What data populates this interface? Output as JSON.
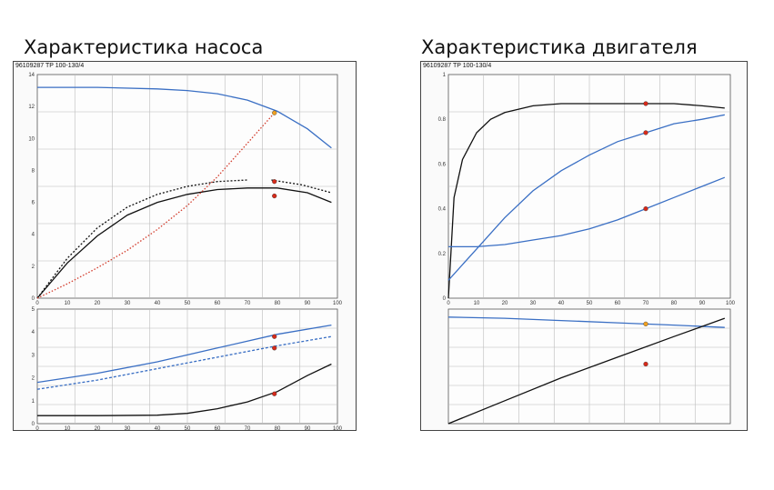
{
  "headings": {
    "pump": "Характеристика насоса",
    "motor": "Характеристика двигателя"
  },
  "panels": {
    "pump_id": "96109287 TP 100-130/4",
    "motor_id": "96109287 TP 100-130/4"
  },
  "colors": {
    "black_curve": "#111111",
    "blue_curve": "#3a6fc4",
    "red_curve": "#d23a2a",
    "marker_red": "#d62a1a",
    "marker_orange": "#f0a020",
    "grid": "#bbbbbb"
  },
  "chart_data": [
    {
      "type": "line",
      "ylim": [
        0,
        14
      ],
      "xlim": [
        0,
        100
      ],
      "x_ticks": [
        "0",
        "10",
        "20",
        "30",
        "40",
        "50",
        "60",
        "70",
        "80",
        "90",
        "100"
      ],
      "y_ticks": [
        "0",
        "2",
        "4",
        "6",
        "8",
        "10",
        "12",
        "14"
      ],
      "series": [
        {
          "style": "solid-blue",
          "x": [
            0,
            20,
            40,
            50,
            60,
            70,
            80,
            90,
            98
          ],
          "y": [
            13.2,
            13.2,
            13.1,
            13.0,
            12.8,
            12.4,
            11.7,
            10.6,
            9.4
          ]
        },
        {
          "style": "solid-black",
          "x": [
            0,
            10,
            20,
            30,
            40,
            50,
            60,
            70,
            80,
            90,
            98
          ],
          "y": [
            0,
            2.2,
            3.9,
            5.2,
            6.0,
            6.5,
            6.8,
            6.9,
            6.9,
            6.6,
            6.0
          ]
        },
        {
          "style": "dashed-black",
          "x": [
            0,
            10,
            20,
            30,
            40,
            50,
            60,
            70
          ],
          "y": [
            0,
            2.5,
            4.4,
            5.7,
            6.5,
            7.0,
            7.3,
            7.4
          ]
        },
        {
          "style": "dashed-red",
          "x": [
            0,
            10,
            20,
            30,
            40,
            50,
            60,
            70,
            79
          ],
          "y": [
            0,
            0.9,
            1.9,
            3.0,
            4.3,
            5.8,
            7.6,
            9.7,
            11.6
          ]
        },
        {
          "style": "dashed-black",
          "x": [
            78,
            88,
            98
          ],
          "y": [
            7.4,
            7.1,
            6.6
          ]
        }
      ],
      "markers": [
        {
          "x": 79,
          "y": 11.6,
          "color": "orange"
        },
        {
          "x": 79,
          "y": 7.3,
          "color": "red"
        },
        {
          "x": 79,
          "y": 6.4,
          "color": "red"
        }
      ]
    },
    {
      "type": "line",
      "ylim": [
        0,
        5
      ],
      "xlim": [
        0,
        100
      ],
      "x_ticks": [
        "0",
        "10",
        "20",
        "30",
        "40",
        "50",
        "60",
        "70",
        "80",
        "90",
        "100"
      ],
      "y_ticks": [
        "0",
        "1",
        "2",
        "3",
        "4",
        "5"
      ],
      "series": [
        {
          "style": "solid-blue",
          "x": [
            0,
            20,
            40,
            60,
            80,
            98
          ],
          "y": [
            1.8,
            2.2,
            2.7,
            3.3,
            3.9,
            4.3
          ]
        },
        {
          "style": "dashed-blue",
          "x": [
            0,
            20,
            40,
            60,
            80,
            98
          ],
          "y": [
            1.5,
            1.9,
            2.4,
            2.9,
            3.4,
            3.8
          ]
        },
        {
          "style": "solid-black",
          "x": [
            0,
            20,
            40,
            50,
            60,
            70,
            80,
            90,
            98
          ],
          "y": [
            0.35,
            0.35,
            0.37,
            0.45,
            0.65,
            0.95,
            1.4,
            2.1,
            2.6
          ]
        }
      ],
      "markers": [
        {
          "x": 79,
          "y": 3.8,
          "color": "red"
        },
        {
          "x": 79,
          "y": 3.3,
          "color": "red"
        },
        {
          "x": 79,
          "y": 1.3,
          "color": "red"
        }
      ]
    },
    {
      "type": "line",
      "ylim": [
        0,
        1
      ],
      "xlim": [
        0,
        100
      ],
      "x_ticks": [
        "0",
        "10",
        "20",
        "30",
        "40",
        "50",
        "60",
        "70",
        "80",
        "90",
        "100"
      ],
      "y_ticks": [
        "0",
        "0.2",
        "0.4",
        "0.6",
        "0.8",
        "1"
      ],
      "series": [
        {
          "style": "solid-black",
          "x": [
            0,
            2,
            5,
            10,
            15,
            20,
            30,
            40,
            50,
            60,
            70,
            80,
            90,
            98
          ],
          "y": [
            0,
            0.45,
            0.62,
            0.74,
            0.8,
            0.83,
            0.86,
            0.87,
            0.87,
            0.87,
            0.87,
            0.87,
            0.86,
            0.85
          ]
        },
        {
          "style": "solid-blue",
          "x": [
            0,
            10,
            20,
            30,
            40,
            50,
            60,
            70,
            80,
            90,
            98
          ],
          "y": [
            0.08,
            0.22,
            0.36,
            0.48,
            0.57,
            0.64,
            0.7,
            0.74,
            0.78,
            0.8,
            0.82
          ]
        },
        {
          "style": "solid-blue",
          "x": [
            0,
            10,
            20,
            30,
            40,
            50,
            60,
            70,
            80,
            90,
            98
          ],
          "y": [
            0.23,
            0.23,
            0.24,
            0.26,
            0.28,
            0.31,
            0.35,
            0.4,
            0.45,
            0.5,
            0.54
          ]
        }
      ],
      "markers": [
        {
          "x": 70,
          "y": 0.87,
          "color": "red"
        },
        {
          "x": 70,
          "y": 0.74,
          "color": "red"
        },
        {
          "x": 70,
          "y": 0.4,
          "color": "red"
        }
      ]
    },
    {
      "type": "line",
      "ylim": [
        0,
        1
      ],
      "xlim": [
        0,
        100
      ],
      "series": [
        {
          "style": "solid-blue",
          "x": [
            0,
            20,
            40,
            60,
            80,
            98
          ],
          "y": [
            0.93,
            0.92,
            0.9,
            0.88,
            0.86,
            0.84
          ]
        },
        {
          "style": "solid-black",
          "x": [
            0,
            20,
            40,
            60,
            80,
            98
          ],
          "y": [
            0.0,
            0.2,
            0.4,
            0.58,
            0.76,
            0.92
          ]
        }
      ],
      "markers": [
        {
          "x": 70,
          "y": 0.87,
          "color": "orange"
        },
        {
          "x": 70,
          "y": 0.52,
          "color": "red"
        }
      ]
    }
  ]
}
